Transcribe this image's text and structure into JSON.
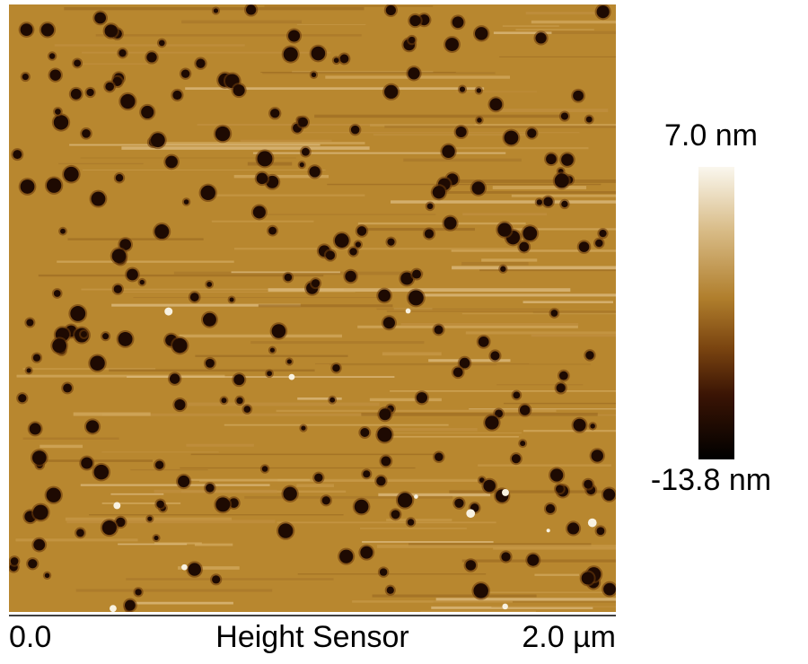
{
  "image": {
    "channel": "Height Sensor",
    "scale_start": "0.0",
    "scale_end": "2.0 µm"
  },
  "colorbar": {
    "max_label": "7.0 nm",
    "min_label": "-13.8 nm"
  }
}
